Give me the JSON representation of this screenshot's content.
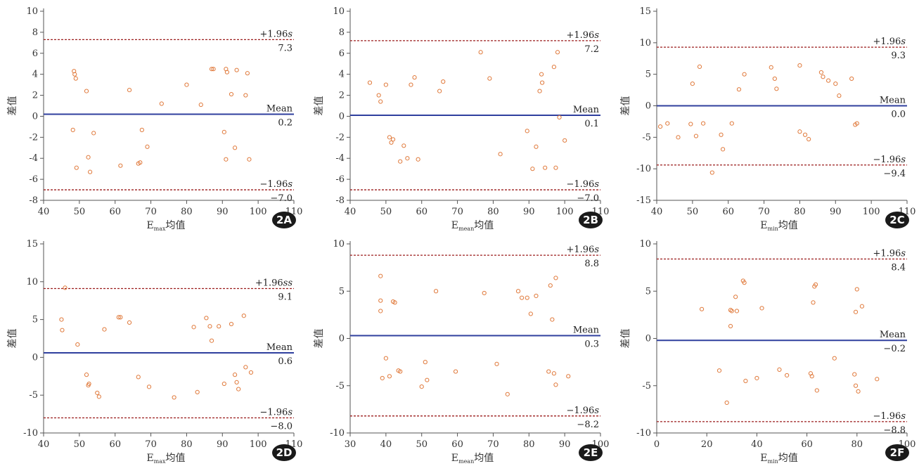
{
  "colors": {
    "axis": "#555555",
    "mean_line": "#2f3f9e",
    "limit_line": "#9b1c1c",
    "point": "#e07a3c",
    "badge": "#1a1a1a",
    "badge_text": "#ffffff"
  },
  "chart_data": [
    {
      "panel": "2A",
      "type": "scatter",
      "ylabel": "差值",
      "xlabel_main": "E",
      "xlabel_sub": "max",
      "xlabel_suffix": "均值",
      "xlim": [
        40,
        110
      ],
      "ylim": [
        -8,
        10
      ],
      "xticks": [
        "40",
        "50",
        "60",
        "70",
        "80",
        "90",
        "100",
        "110"
      ],
      "yticks": [
        "-8",
        "-6",
        "-4",
        "-2",
        "0",
        "2",
        "4",
        "6",
        "8",
        "10"
      ],
      "mean": 0.2,
      "upper": 7.3,
      "lower": -7.0,
      "upper_label": "+1.96",
      "upper_unit": "s",
      "upper_value": "7.3",
      "mean_label": "Mean",
      "mean_value": "0.2",
      "lower_label": "−1.96",
      "lower_unit": "s",
      "lower_value": "−7.0",
      "points": [
        [
          48.5,
          4.3
        ],
        [
          48.7,
          4.0
        ],
        [
          49,
          3.6
        ],
        [
          48.2,
          -1.3
        ],
        [
          49.2,
          -4.9
        ],
        [
          52,
          2.4
        ],
        [
          52.5,
          -3.9
        ],
        [
          53,
          -5.3
        ],
        [
          54,
          -1.6
        ],
        [
          61.5,
          -4.7
        ],
        [
          64,
          2.5
        ],
        [
          66.5,
          -4.5
        ],
        [
          67,
          -4.4
        ],
        [
          67.5,
          -1.3
        ],
        [
          69,
          -2.9
        ],
        [
          73,
          1.2
        ],
        [
          80,
          3.0
        ],
        [
          84,
          1.1
        ],
        [
          87,
          4.5
        ],
        [
          87.5,
          4.5
        ],
        [
          90.5,
          -1.5
        ],
        [
          91,
          4.5
        ],
        [
          91.3,
          4.2
        ],
        [
          91,
          -4.1
        ],
        [
          92.5,
          2.1
        ],
        [
          93.5,
          -3.0
        ],
        [
          94,
          4.4
        ],
        [
          96.5,
          2.0
        ],
        [
          97,
          4.1
        ],
        [
          97.5,
          -4.1
        ]
      ]
    },
    {
      "panel": "2B",
      "type": "scatter",
      "ylabel": "差值",
      "xlabel_main": "E",
      "xlabel_sub": "mean",
      "xlabel_suffix": "均值",
      "xlim": [
        40,
        110
      ],
      "ylim": [
        -8,
        10
      ],
      "xticks": [
        "40",
        "50",
        "60",
        "70",
        "80",
        "90",
        "100",
        "110"
      ],
      "yticks": [
        "-8",
        "-6",
        "-4",
        "-2",
        "0",
        "2",
        "4",
        "6",
        "8",
        "10"
      ],
      "mean": 0.1,
      "upper": 7.2,
      "lower": -7.0,
      "upper_label": "+1.96",
      "upper_unit": "s",
      "upper_value": "7.2",
      "mean_label": "Mean",
      "mean_value": "0.1",
      "lower_label": "−1.96",
      "lower_unit": "s",
      "lower_value": "−7.0",
      "points": [
        [
          45.5,
          3.2
        ],
        [
          48,
          2.0
        ],
        [
          48.5,
          1.4
        ],
        [
          50,
          3.0
        ],
        [
          51,
          -2.0
        ],
        [
          51.5,
          -2.5
        ],
        [
          52,
          -2.2
        ],
        [
          54,
          -4.3
        ],
        [
          55,
          -2.8
        ],
        [
          56,
          -4.0
        ],
        [
          57,
          3.0
        ],
        [
          58,
          3.7
        ],
        [
          59,
          -4.1
        ],
        [
          65,
          2.4
        ],
        [
          66,
          3.3
        ],
        [
          76.5,
          6.1
        ],
        [
          79,
          3.6
        ],
        [
          82,
          -3.6
        ],
        [
          89.5,
          -1.4
        ],
        [
          91,
          -5.0
        ],
        [
          92,
          -2.9
        ],
        [
          93,
          2.4
        ],
        [
          93.5,
          4.0
        ],
        [
          93.7,
          3.2
        ],
        [
          94.5,
          -4.9
        ],
        [
          97,
          4.7
        ],
        [
          98,
          6.1
        ],
        [
          98.5,
          -0.1
        ],
        [
          97.5,
          -4.9
        ],
        [
          100,
          -2.3
        ]
      ]
    },
    {
      "panel": "2C",
      "type": "scatter",
      "ylabel": "差值",
      "xlabel_main": "E",
      "xlabel_sub": "min",
      "xlabel_suffix": "均值",
      "xlim": [
        40,
        110
      ],
      "ylim": [
        -15,
        15
      ],
      "xticks": [
        "40",
        "50",
        "60",
        "70",
        "80",
        "90",
        "100",
        "110"
      ],
      "yticks": [
        "-15",
        "-10",
        "-5",
        "0",
        "5",
        "10",
        "15"
      ],
      "mean": 0.0,
      "upper": 9.3,
      "lower": -9.4,
      "upper_label": "+1.96",
      "upper_unit": "s",
      "upper_value": "9.3",
      "mean_label": "Mean",
      "mean_value": "0.0",
      "lower_label": "−1.96",
      "lower_unit": "s",
      "lower_value": "−9.4",
      "points": [
        [
          41,
          -3.3
        ],
        [
          43,
          -2.8
        ],
        [
          46,
          -5.0
        ],
        [
          49.5,
          -2.9
        ],
        [
          50,
          3.5
        ],
        [
          51,
          -4.8
        ],
        [
          52,
          6.2
        ],
        [
          53,
          -2.8
        ],
        [
          55.5,
          -10.6
        ],
        [
          58,
          -4.6
        ],
        [
          58.5,
          -6.9
        ],
        [
          61,
          -2.8
        ],
        [
          63,
          2.6
        ],
        [
          64.5,
          5.0
        ],
        [
          72,
          6.1
        ],
        [
          73,
          4.3
        ],
        [
          73.5,
          2.7
        ],
        [
          80,
          6.4
        ],
        [
          80,
          -4.1
        ],
        [
          81.5,
          -4.6
        ],
        [
          82.5,
          -5.3
        ],
        [
          86,
          5.3
        ],
        [
          86.5,
          4.6
        ],
        [
          88,
          4.0
        ],
        [
          90,
          3.5
        ],
        [
          91,
          1.6
        ],
        [
          94.5,
          4.3
        ],
        [
          95.5,
          -3.0
        ],
        [
          96,
          -2.8
        ]
      ]
    },
    {
      "panel": "2D",
      "type": "scatter",
      "ylabel": "差值",
      "xlabel_main": "E",
      "xlabel_sub": "max",
      "xlabel_suffix": "均值",
      "xlim": [
        40,
        110
      ],
      "ylim": [
        -10,
        15
      ],
      "xticks": [
        "40",
        "50",
        "60",
        "70",
        "80",
        "90",
        "100",
        "110"
      ],
      "yticks": [
        "-10",
        "-5",
        "0",
        "5",
        "10",
        "15"
      ],
      "mean": 0.6,
      "upper": 9.1,
      "lower": -8.0,
      "upper_label": "+1.96",
      "upper_unit": "ss",
      "upper_value": "9.1",
      "mean_label": "Mean",
      "mean_value": "0.6",
      "lower_label": "−1.96",
      "lower_unit": "s",
      "lower_value": "−8.0",
      "points": [
        [
          45,
          5.0
        ],
        [
          45.2,
          3.6
        ],
        [
          46,
          9.2
        ],
        [
          49.5,
          1.7
        ],
        [
          52,
          -2.3
        ],
        [
          52.5,
          -3.7
        ],
        [
          52.7,
          -3.5
        ],
        [
          55,
          -4.7
        ],
        [
          55.5,
          -5.2
        ],
        [
          57,
          3.7
        ],
        [
          61,
          5.3
        ],
        [
          61.5,
          5.3
        ],
        [
          64,
          4.6
        ],
        [
          66.5,
          -2.6
        ],
        [
          69.5,
          -3.9
        ],
        [
          76.5,
          -5.3
        ],
        [
          82,
          4.0
        ],
        [
          83,
          -4.6
        ],
        [
          85.5,
          5.2
        ],
        [
          86.5,
          4.1
        ],
        [
          87,
          2.2
        ],
        [
          89,
          4.1
        ],
        [
          90.5,
          -3.5
        ],
        [
          92.5,
          4.4
        ],
        [
          93.5,
          -2.3
        ],
        [
          94,
          -3.3
        ],
        [
          94.5,
          -4.2
        ],
        [
          96,
          5.5
        ],
        [
          96.5,
          -1.3
        ],
        [
          98,
          -2.0
        ]
      ]
    },
    {
      "panel": "2E",
      "type": "scatter",
      "ylabel": "差值",
      "xlabel_main": "E",
      "xlabel_sub": "mean",
      "xlabel_suffix": "均值",
      "xlim": [
        30,
        100
      ],
      "ylim": [
        -10,
        10
      ],
      "xticks": [
        "30",
        "40",
        "50",
        "60",
        "70",
        "80",
        "90",
        "100"
      ],
      "yticks": [
        "-10",
        "-5",
        "0",
        "5",
        "10"
      ],
      "mean": 0.3,
      "upper": 8.8,
      "lower": -8.2,
      "upper_label": "+1.96",
      "upper_unit": "s",
      "upper_value": "8.8",
      "mean_label": "Mean",
      "mean_value": "0.3",
      "lower_label": "−1.96",
      "lower_unit": "s",
      "lower_value": "−8.2",
      "points": [
        [
          38.5,
          6.6
        ],
        [
          38.5,
          4.0
        ],
        [
          38.5,
          2.9
        ],
        [
          39,
          -4.2
        ],
        [
          40,
          -2.1
        ],
        [
          41,
          -4.0
        ],
        [
          42,
          3.9
        ],
        [
          42.5,
          3.8
        ],
        [
          43.5,
          -3.4
        ],
        [
          44,
          -3.5
        ],
        [
          50,
          -5.1
        ],
        [
          51,
          -2.5
        ],
        [
          51.5,
          -4.4
        ],
        [
          54,
          5.0
        ],
        [
          59.5,
          -3.5
        ],
        [
          67.5,
          4.8
        ],
        [
          71,
          -2.7
        ],
        [
          74,
          -5.9
        ],
        [
          77,
          5.0
        ],
        [
          78,
          4.3
        ],
        [
          79.5,
          4.3
        ],
        [
          80.5,
          2.6
        ],
        [
          82,
          4.5
        ],
        [
          85.5,
          -3.5
        ],
        [
          86,
          5.6
        ],
        [
          86.5,
          2.0
        ],
        [
          87,
          -3.7
        ],
        [
          87.5,
          6.4
        ],
        [
          87.5,
          -4.9
        ],
        [
          91,
          -4.0
        ]
      ]
    },
    {
      "panel": "2F",
      "type": "scatter",
      "ylabel": "差值",
      "xlabel_main": "E",
      "xlabel_sub": "min",
      "xlabel_suffix": "均值",
      "xlim": [
        0,
        100
      ],
      "ylim": [
        -10,
        10
      ],
      "xticks": [
        "0",
        "20",
        "40",
        "60",
        "80",
        "100"
      ],
      "yticks": [
        "-10",
        "-5",
        "0",
        "5",
        "10"
      ],
      "mean": -0.2,
      "upper": 8.4,
      "lower": -8.8,
      "upper_label": "+1.96",
      "upper_unit": "s",
      "upper_value": "8.4",
      "mean_label": "Mean",
      "mean_value": "−0.2",
      "lower_label": "−1.96",
      "lower_unit": "s",
      "lower_value": "−8.8",
      "points": [
        [
          18,
          3.1
        ],
        [
          25,
          -3.4
        ],
        [
          28,
          -6.8
        ],
        [
          29.5,
          1.3
        ],
        [
          29.5,
          3.0
        ],
        [
          30,
          2.9
        ],
        [
          31.5,
          4.4
        ],
        [
          32,
          2.9
        ],
        [
          34.5,
          6.1
        ],
        [
          35,
          5.9
        ],
        [
          35.5,
          -4.5
        ],
        [
          40,
          -4.2
        ],
        [
          42,
          3.2
        ],
        [
          49,
          -3.3
        ],
        [
          52,
          -3.9
        ],
        [
          61.5,
          -3.7
        ],
        [
          62,
          -4.0
        ],
        [
          62.5,
          3.8
        ],
        [
          63,
          5.5
        ],
        [
          63.5,
          5.7
        ],
        [
          64,
          -5.5
        ],
        [
          71,
          -2.1
        ],
        [
          79,
          -3.8
        ],
        [
          79.5,
          2.8
        ],
        [
          79.5,
          -5.0
        ],
        [
          80,
          5.2
        ],
        [
          80.5,
          -5.6
        ],
        [
          82,
          3.4
        ],
        [
          88,
          -4.3
        ]
      ]
    }
  ]
}
